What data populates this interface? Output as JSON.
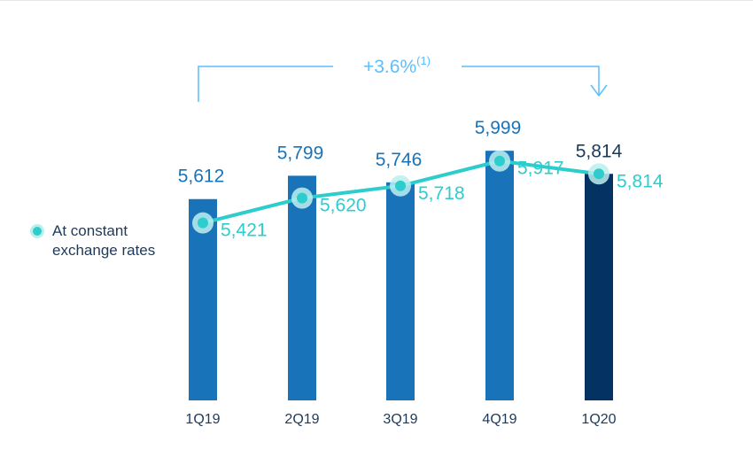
{
  "chart_data": {
    "type": "bar",
    "categories": [
      "1Q19",
      "2Q19",
      "3Q19",
      "4Q19",
      "1Q20"
    ],
    "series": [
      {
        "values": [
          5612,
          5799,
          5746,
          5999,
          5814
        ]
      },
      {
        "name": "At constant exchange rates",
        "type": "line",
        "values": [
          5421,
          5620,
          5718,
          5917,
          5814
        ]
      }
    ],
    "bar_labels": [
      "5,612",
      "5,799",
      "5,746",
      "5,999",
      "5,814"
    ],
    "line_labels": [
      "5,421",
      "5,620",
      "5,718",
      "5,917",
      "5,814"
    ],
    "annotation": {
      "text": "+3.6%",
      "superscript": "(1)",
      "from": "1Q19",
      "to": "1Q20"
    },
    "legend": {
      "label": "At constant exchange rates",
      "position": "left"
    },
    "ylim": [
      4000,
      6050
    ],
    "grid": false,
    "colors": {
      "bar": "#1973b8",
      "bar_highlight": "#043263",
      "line": "#2dcccd",
      "line_halo": "#bdeeee",
      "annotation": "#5bbeff",
      "bar_label": "#1973b8",
      "bar_label_highlight": "#1b3a5c",
      "line_label": "#2dcccd",
      "tick_label": "#1b3a5c"
    }
  }
}
